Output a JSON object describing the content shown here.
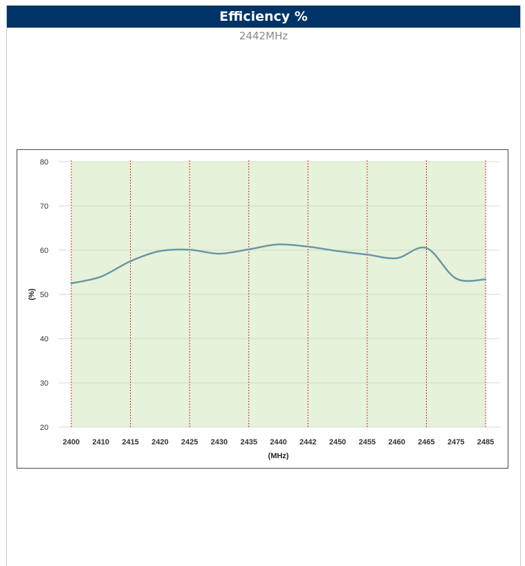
{
  "header": {
    "title": "Efficiency %",
    "subtitle": "2442MHz"
  },
  "colors": {
    "title_bar": "#003366",
    "plot_background": "#e6f2d9",
    "grid": "#d2dbcc",
    "marker_lines": "#cc2222",
    "series_line": "#6a97a6"
  },
  "chart_data": {
    "type": "line",
    "title": "",
    "xlabel": "(MHz)",
    "ylabel": "(%)",
    "ylim": [
      20,
      80
    ],
    "yticks": [
      20,
      30,
      40,
      50,
      60,
      70,
      80
    ],
    "categories": [
      "2400",
      "2410",
      "2415",
      "2420",
      "2425",
      "2430",
      "2435",
      "2440",
      "2442",
      "2450",
      "2455",
      "2460",
      "2465",
      "2475",
      "2485"
    ],
    "marker_categories": [
      "2400",
      "2415",
      "2425",
      "2435",
      "2442",
      "2455",
      "2465",
      "2485"
    ],
    "grid": true,
    "legend": "none",
    "series": [
      {
        "values": [
          52.5,
          54.0,
          57.5,
          59.8,
          60.1,
          59.2,
          60.2,
          61.3,
          60.8,
          59.8,
          59.0,
          58.2,
          60.5,
          53.6,
          53.4
        ]
      }
    ]
  }
}
